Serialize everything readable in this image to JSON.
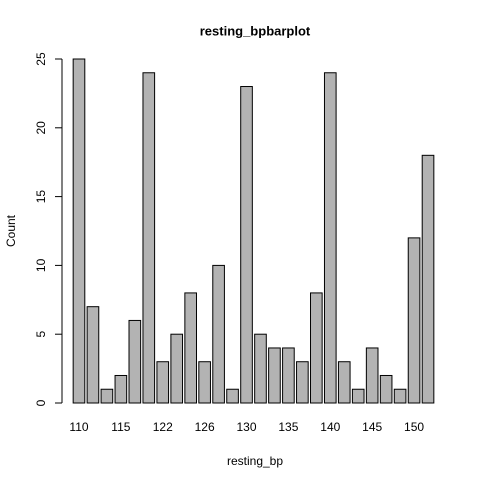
{
  "chart_data": {
    "type": "bar",
    "title": "resting_bpbarplot",
    "x_label": "resting_bp",
    "y_label": "Count",
    "categories": [
      "110",
      null,
      null,
      "115",
      null,
      null,
      "122",
      null,
      null,
      "126",
      null,
      null,
      "130",
      null,
      null,
      "135",
      null,
      null,
      "140",
      null,
      null,
      "145",
      null,
      null,
      "150",
      null
    ],
    "values": [
      25,
      7,
      1,
      2,
      6,
      24,
      3,
      5,
      8,
      3,
      10,
      1,
      23,
      5,
      4,
      4,
      3,
      8,
      24,
      3,
      1,
      4,
      2,
      1,
      12,
      18
    ],
    "color": "#b3b3b3",
    "ylim": [
      0,
      25
    ],
    "yticks": [
      0,
      5,
      10,
      15,
      20,
      25
    ]
  }
}
